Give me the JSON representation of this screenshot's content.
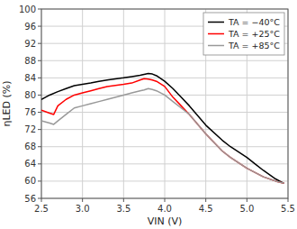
{
  "chart_data": {
    "type": "line",
    "title": "",
    "xlabel": "VIN (V)",
    "ylabel": "ηLED (%)",
    "xlim": [
      2.5,
      5.5
    ],
    "xticks": [
      2.5,
      {
        "value": 3.0,
        "label": "3.0"
      },
      3.5,
      {
        "value": 4.0,
        "label": "4.0"
      },
      4.5,
      {
        "value": 5.0,
        "label": "5.0"
      },
      5.5
    ],
    "ylim": [
      56,
      100
    ],
    "yticks": [
      56,
      60,
      64,
      68,
      72,
      76,
      80,
      84,
      88,
      92,
      96,
      100
    ],
    "grid": true,
    "legend": "upper right",
    "series": [
      {
        "name": "TA = −40°C",
        "color": "#000000",
        "x": [
          2.5,
          2.6,
          2.7,
          2.8,
          2.9,
          3.0,
          3.1,
          3.2,
          3.3,
          3.5,
          3.6,
          3.7,
          3.75,
          3.8,
          3.85,
          3.9,
          4.0,
          4.1,
          4.2,
          4.3,
          4.5,
          4.7,
          4.8,
          5.0,
          5.1,
          5.2,
          5.35,
          5.45
        ],
        "values": [
          79.0,
          80.0,
          80.8,
          81.5,
          82.2,
          82.5,
          82.8,
          83.2,
          83.5,
          84.0,
          84.3,
          84.6,
          84.8,
          85.0,
          84.9,
          84.5,
          83.2,
          81.5,
          79.5,
          77.5,
          73.0,
          69.5,
          68.0,
          65.5,
          64.0,
          62.5,
          60.5,
          59.5
        ]
      },
      {
        "name": "TA = +25°C",
        "color": "#ff0000",
        "x": [
          2.5,
          2.6,
          2.65,
          2.7,
          2.8,
          2.9,
          3.0,
          3.1,
          3.2,
          3.3,
          3.5,
          3.6,
          3.7,
          3.75,
          3.8,
          3.85,
          3.9,
          4.0,
          4.1,
          4.2,
          4.3,
          4.5,
          4.7,
          4.8,
          5.0,
          5.1,
          5.2,
          5.35,
          5.45
        ],
        "values": [
          76.5,
          75.8,
          75.5,
          77.5,
          79.0,
          80.0,
          80.5,
          81.0,
          81.5,
          82.0,
          82.5,
          82.8,
          83.5,
          83.8,
          83.7,
          83.5,
          83.2,
          82.0,
          79.5,
          77.5,
          75.5,
          71.0,
          67.0,
          65.5,
          63.0,
          62.0,
          61.0,
          60.0,
          59.5
        ]
      },
      {
        "name": "TA = +85°C",
        "color": "#999999",
        "x": [
          2.5,
          2.6,
          2.65,
          2.7,
          2.8,
          2.9,
          3.0,
          3.1,
          3.2,
          3.3,
          3.5,
          3.6,
          3.7,
          3.75,
          3.8,
          3.85,
          3.9,
          4.0,
          4.1,
          4.2,
          4.3,
          4.5,
          4.7,
          4.8,
          5.0,
          5.1,
          5.2,
          5.35,
          5.45
        ],
        "values": [
          74.0,
          73.5,
          73.2,
          74.0,
          75.5,
          77.0,
          77.5,
          78.0,
          78.5,
          79.0,
          80.0,
          80.5,
          81.0,
          81.2,
          81.5,
          81.3,
          81.0,
          80.0,
          78.5,
          77.0,
          75.5,
          71.0,
          67.0,
          65.5,
          63.0,
          62.0,
          61.0,
          60.0,
          59.5
        ]
      }
    ]
  }
}
